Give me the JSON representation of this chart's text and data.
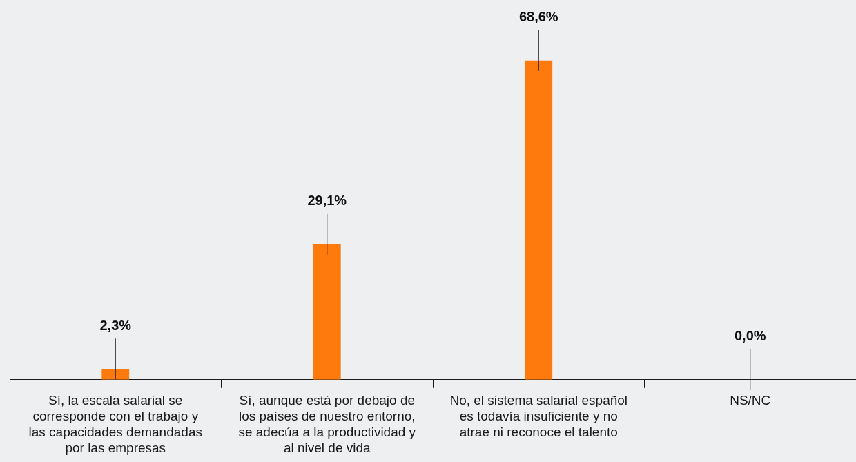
{
  "chart_data": {
    "type": "bar",
    "categories": [
      "Sí, la escala salarial se corresponde con el trabajo y las capacidades demandadas por las empresas",
      "Sí, aunque está por debajo de los países de nuestro entorno, se adecúa a la productividad y al nivel de vida",
      "No, el sistema salarial español es todavía insuficiente y no atrae ni reconoce el talento",
      "NS/NC"
    ],
    "values": [
      2.3,
      29.1,
      68.6,
      0.0
    ],
    "value_labels": [
      "2,3%",
      "29,1%",
      "68,6%",
      "0,0%"
    ],
    "color": "#fe7a0c",
    "grid": false,
    "legend": false
  }
}
